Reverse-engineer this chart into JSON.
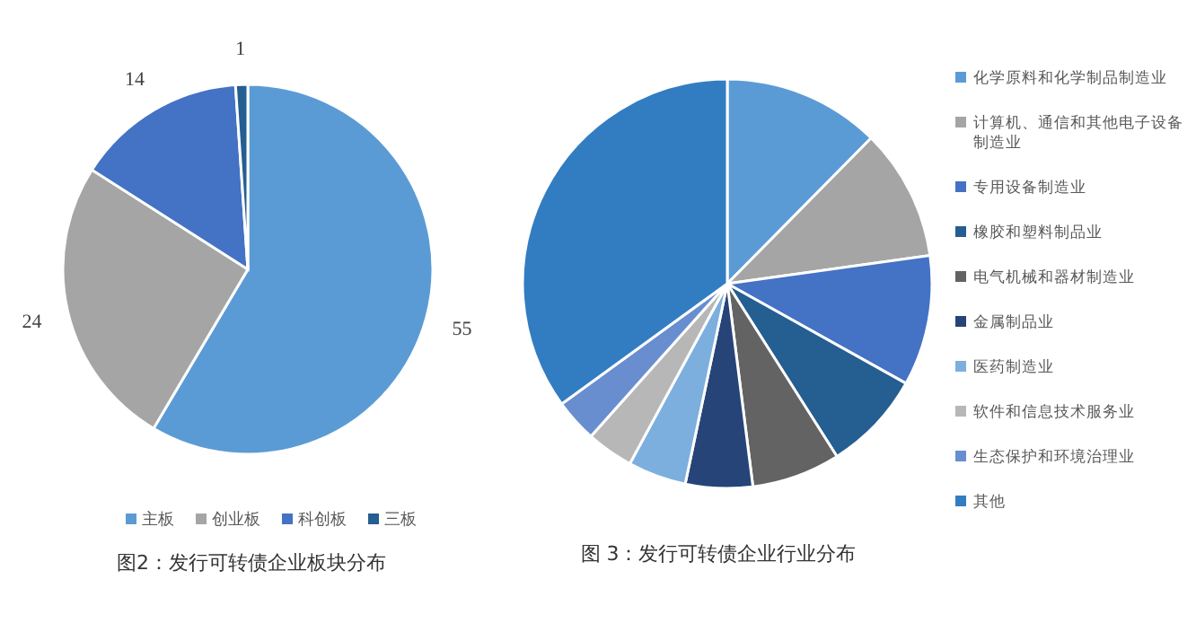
{
  "chart_data": [
    {
      "type": "pie",
      "title": "图2：发行可转债企业板块分布",
      "categories": [
        "主板",
        "创业板",
        "科创板",
        "三板"
      ],
      "values": [
        55,
        24,
        14,
        1
      ],
      "colors": [
        "#5b9bd5",
        "#a5a5a5",
        "#4472c4",
        "#255e91"
      ],
      "data_labels": true,
      "legend": "bottom"
    },
    {
      "type": "pie",
      "title": "图 3：发行可转债企业行业分布",
      "categories": [
        "化学原料和化学制品制造业",
        "计算机、通信和其他电子设备制造业",
        "专用设备制造业",
        "橡胶和塑料制品业",
        "电气机械和器材制造业",
        "金属制品业",
        "医药制造业",
        "软件和信息技术服务业",
        "生态保护和环境治理业",
        "其他"
      ],
      "values": [
        12.4,
        10.4,
        10.3,
        7.9,
        7.0,
        5.3,
        4.6,
        3.7,
        3.4,
        35.0
      ],
      "colors": [
        "#5b9bd5",
        "#a5a5a5",
        "#4472c4",
        "#255e91",
        "#636363",
        "#264478",
        "#7cafdd",
        "#b7b7b7",
        "#698ed0",
        "#327dc2"
      ],
      "legend": "right"
    }
  ]
}
